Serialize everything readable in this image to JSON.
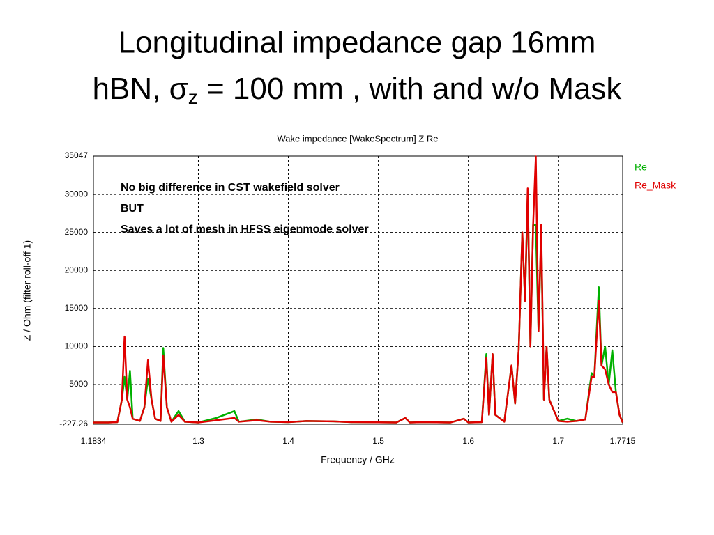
{
  "slide_title": [
    "Longitudinal impedance gap 16mm",
    "hBN, σ",
    "z",
    " = 100 mm , with and w/o Mask"
  ],
  "chart_data": {
    "type": "line",
    "title": "Wake impedance [WakeSpectrum] Z Re",
    "xlabel": "Frequency / GHz",
    "ylabel": "Z / Ohm (filter roll-off 1)",
    "annotations": [
      "No big difference in CST wakefield solver",
      "BUT",
      "Saves a lot of mesh in HFSS eigenmode solver"
    ],
    "xlim": [
      1.1834,
      1.7715
    ],
    "ylim": [
      -227.26,
      35047
    ],
    "xticks": [
      1.1834,
      1.3,
      1.4,
      1.5,
      1.6,
      1.7,
      1.7715
    ],
    "yticks": [
      35047,
      30000,
      25000,
      20000,
      15000,
      10000,
      5000,
      -227.26
    ],
    "grid": true,
    "legend": "upper right",
    "x": [
      1.1834,
      1.2,
      1.21,
      1.215,
      1.218,
      1.221,
      1.224,
      1.227,
      1.235,
      1.24,
      1.244,
      1.248,
      1.252,
      1.258,
      1.261,
      1.265,
      1.27,
      1.278,
      1.285,
      1.3,
      1.32,
      1.34,
      1.345,
      1.365,
      1.38,
      1.4,
      1.42,
      1.45,
      1.47,
      1.5,
      1.52,
      1.53,
      1.535,
      1.55,
      1.58,
      1.595,
      1.6,
      1.615,
      1.62,
      1.623,
      1.627,
      1.63,
      1.64,
      1.648,
      1.652,
      1.656,
      1.66,
      1.663,
      1.666,
      1.669,
      1.672,
      1.675,
      1.678,
      1.681,
      1.684,
      1.687,
      1.69,
      1.7,
      1.71,
      1.72,
      1.73,
      1.737,
      1.74,
      1.745,
      1.748,
      1.752,
      1.756,
      1.76,
      1.764,
      1.768,
      1.7715
    ],
    "series": [
      {
        "name": "Re",
        "color": "#00b000",
        "values": [
          0,
          0,
          50,
          3000,
          6000,
          3000,
          6800,
          500,
          200,
          2000,
          5800,
          3000,
          500,
          200,
          9800,
          2000,
          100,
          1500,
          100,
          0,
          600,
          1500,
          100,
          400,
          100,
          50,
          200,
          150,
          50,
          20,
          0,
          600,
          0,
          50,
          0,
          500,
          0,
          50,
          9000,
          1000,
          9000,
          1000,
          100,
          7500,
          2500,
          9600,
          25000,
          16000,
          30000,
          10000,
          26000,
          26000,
          12000,
          25000,
          3000,
          10000,
          3000,
          200,
          500,
          200,
          400,
          6500,
          6000,
          17800,
          7500,
          10000,
          5000,
          9500,
          4000,
          1000,
          0
        ]
      },
      {
        "name": "Re_Mask",
        "color": "#e00000",
        "values": [
          0,
          0,
          50,
          3000,
          11300,
          3000,
          2000,
          500,
          200,
          2000,
          8200,
          3000,
          500,
          200,
          8800,
          2000,
          100,
          1000,
          100,
          0,
          300,
          600,
          100,
          300,
          100,
          50,
          200,
          150,
          50,
          20,
          0,
          600,
          0,
          50,
          0,
          500,
          0,
          50,
          8500,
          1000,
          9000,
          1000,
          100,
          7500,
          2500,
          9600,
          25000,
          16000,
          30800,
          10000,
          26000,
          35000,
          12000,
          26000,
          3000,
          10000,
          3000,
          200,
          100,
          200,
          400,
          6000,
          6000,
          16000,
          7500,
          7000,
          5000,
          4000,
          4000,
          1000,
          0
        ]
      }
    ]
  }
}
